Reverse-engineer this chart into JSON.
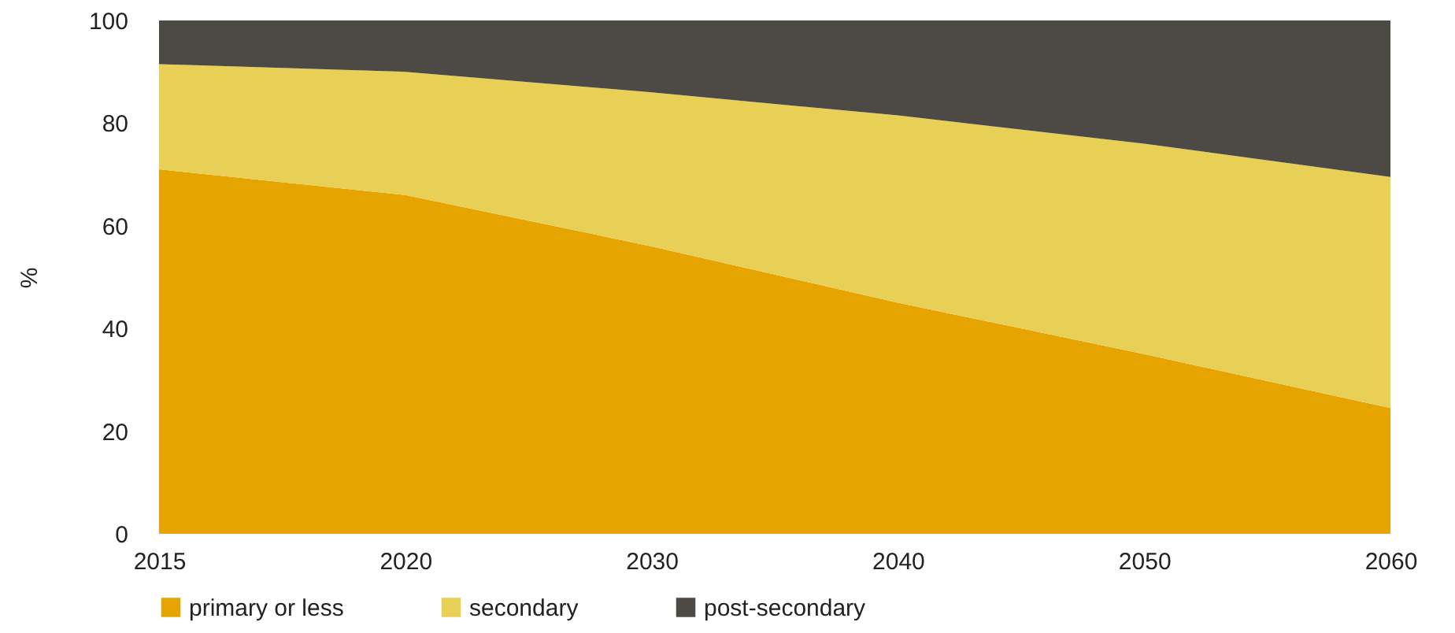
{
  "chart_data": {
    "type": "area",
    "stacked": true,
    "ylabel": "%",
    "categories": [
      "2015",
      "2020",
      "2030",
      "2040",
      "2050",
      "2060"
    ],
    "series": [
      {
        "name": "primary or less",
        "color": "#e6a400",
        "values": [
          71,
          66,
          56,
          45,
          35,
          24.5
        ]
      },
      {
        "name": "secondary",
        "color": "#e8cf55",
        "values": [
          20.5,
          24,
          30,
          36.5,
          41,
          45
        ]
      },
      {
        "name": "post-secondary",
        "color": "#4d4a45",
        "values": [
          8.5,
          10,
          14,
          18.5,
          24,
          30.5
        ]
      }
    ],
    "ylim": [
      0,
      100
    ],
    "yticks": [
      0,
      20,
      40,
      60,
      80,
      100
    ],
    "grid": false,
    "legend": "bottom"
  }
}
